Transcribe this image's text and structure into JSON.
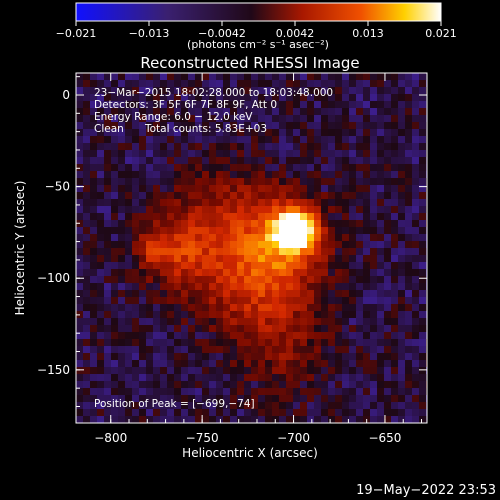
{
  "colorbar": {
    "tick_labels": [
      "−0.021",
      "−0.013",
      "−0.0042",
      "0.0042",
      "0.013",
      "0.021"
    ],
    "units": "(photons cm⁻² s⁻¹ asec⁻²)"
  },
  "title": "Reconstructed RHESSI Image",
  "info": {
    "time_range": "23−Mar−2015 18:02:28.000 to 18:03:48.000",
    "detectors": "Detectors: 3F 5F 6F 7F 8F 9F, Att 0",
    "energy_range": "Energy Range: 6.0 − 12.0 keV",
    "method": "Clean",
    "total_counts": "Total counts: 5.83E+03",
    "peak_position": "Position of Peak = [−699,−74]"
  },
  "axes": {
    "xlabel": "Heliocentric X (arcsec)",
    "ylabel": "Heliocentric Y (arcsec)",
    "xticks": [
      {
        "value": -800,
        "label": "−800"
      },
      {
        "value": -750,
        "label": "−750"
      },
      {
        "value": -700,
        "label": "−700"
      },
      {
        "value": -650,
        "label": "−650"
      }
    ],
    "yticks": [
      {
        "value": 0,
        "label": "0"
      },
      {
        "value": -50,
        "label": "−50"
      },
      {
        "value": -100,
        "label": "−100"
      },
      {
        "value": -150,
        "label": "−150"
      }
    ],
    "xlim": [
      -819,
      -627
    ],
    "ylim": [
      -179,
      12
    ]
  },
  "image": {
    "colormap": "blue-black-red-yellow-white",
    "peak": [
      -699,
      -74
    ],
    "sources": [
      {
        "x": -699,
        "y": -74,
        "sigma": 7,
        "amp": 1.0
      },
      {
        "x": -704,
        "y": -78,
        "sigma": 16,
        "amp": 0.55
      },
      {
        "x": -777,
        "y": -84,
        "sigma": 5,
        "amp": 0.32
      },
      {
        "x": -765,
        "y": -85,
        "sigma": 13,
        "amp": 0.35
      },
      {
        "x": -735,
        "y": -90,
        "sigma": 22,
        "amp": 0.3
      },
      {
        "x": -715,
        "y": -110,
        "sigma": 18,
        "amp": 0.25
      },
      {
        "x": -705,
        "y": -140,
        "sigma": 18,
        "amp": 0.18
      },
      {
        "x": -740,
        "y": -60,
        "sigma": 18,
        "amp": 0.18
      }
    ]
  },
  "timestamp": "19−May−2022 23:53"
}
